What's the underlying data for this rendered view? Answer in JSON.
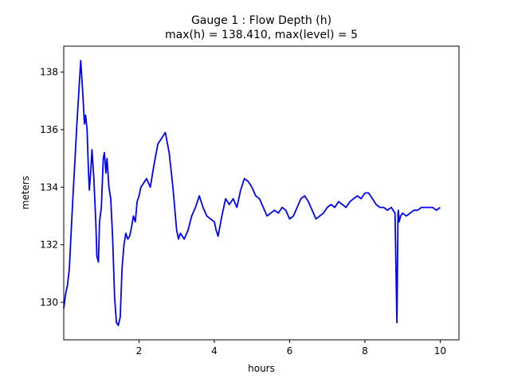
{
  "chart_data": {
    "type": "line",
    "title_line1": "Gauge 1 : Flow Depth (h)",
    "title_line2": "max(h) = 138.410,    max(level) = 5",
    "xlabel": "hours",
    "ylabel": "meters",
    "xlim": [
      0.0,
      10.5
    ],
    "ylim": [
      128.7,
      138.9
    ],
    "x_ticks": [
      2,
      4,
      6,
      8,
      10
    ],
    "y_ticks": [
      130,
      132,
      134,
      136,
      138
    ],
    "grid": false,
    "legend": "none",
    "line_color": "#0000ff",
    "series": [
      {
        "x": [
          0.0,
          0.05,
          0.1,
          0.15,
          0.2,
          0.25,
          0.3,
          0.35,
          0.4,
          0.45,
          0.5,
          0.55,
          0.58,
          0.62,
          0.65,
          0.68,
          0.72,
          0.75,
          0.8,
          0.85,
          0.88,
          0.92,
          0.95,
          1.0,
          1.05,
          1.08,
          1.12,
          1.15,
          1.2,
          1.25,
          1.3,
          1.35,
          1.4,
          1.45,
          1.5,
          1.55,
          1.6,
          1.65,
          1.7,
          1.75,
          1.8,
          1.85,
          1.9,
          1.95,
          2.0,
          2.05,
          2.1,
          2.2,
          2.3,
          2.4,
          2.5,
          2.6,
          2.7,
          2.8,
          2.9,
          3.0,
          3.05,
          3.1,
          3.15,
          3.2,
          3.3,
          3.4,
          3.5,
          3.6,
          3.7,
          3.8,
          3.9,
          4.0,
          4.05,
          4.1,
          4.2,
          4.3,
          4.4,
          4.5,
          4.6,
          4.7,
          4.8,
          4.9,
          5.0,
          5.1,
          5.2,
          5.3,
          5.4,
          5.5,
          5.6,
          5.7,
          5.8,
          5.9,
          6.0,
          6.1,
          6.2,
          6.3,
          6.4,
          6.5,
          6.6,
          6.7,
          6.8,
          6.9,
          7.0,
          7.1,
          7.2,
          7.3,
          7.4,
          7.5,
          7.6,
          7.7,
          7.8,
          7.9,
          8.0,
          8.1,
          8.2,
          8.3,
          8.4,
          8.5,
          8.6,
          8.7,
          8.8,
          8.85,
          8.88,
          8.89,
          8.9,
          8.9,
          8.91,
          8.95,
          9.0,
          9.1,
          9.2,
          9.3,
          9.4,
          9.5,
          9.6,
          9.7,
          9.8,
          9.9,
          10.0
        ],
        "y": [
          129.8,
          130.3,
          130.6,
          131.2,
          132.5,
          133.8,
          135.0,
          136.2,
          137.3,
          138.4,
          137.4,
          136.2,
          136.5,
          136.0,
          134.8,
          133.9,
          134.6,
          135.3,
          134.3,
          132.8,
          131.6,
          131.4,
          132.8,
          133.3,
          135.0,
          135.2,
          134.5,
          135.0,
          134.0,
          133.6,
          132.2,
          130.2,
          129.3,
          129.2,
          129.5,
          131.2,
          132.0,
          132.4,
          132.2,
          132.3,
          132.6,
          133.0,
          132.8,
          133.5,
          133.7,
          134.0,
          134.1,
          134.3,
          134.0,
          134.8,
          135.5,
          135.7,
          135.9,
          135.2,
          134.0,
          132.5,
          132.2,
          132.4,
          132.3,
          132.2,
          132.5,
          133.0,
          133.3,
          133.7,
          133.3,
          133.0,
          132.9,
          132.8,
          132.5,
          132.3,
          133.0,
          133.6,
          133.4,
          133.6,
          133.3,
          133.9,
          134.3,
          134.2,
          134.0,
          133.7,
          133.6,
          133.3,
          133.0,
          133.1,
          133.2,
          133.1,
          133.3,
          133.2,
          132.9,
          133.0,
          133.3,
          133.6,
          133.7,
          133.5,
          133.2,
          132.9,
          133.0,
          133.1,
          133.3,
          133.4,
          133.3,
          133.5,
          133.4,
          133.3,
          133.5,
          133.6,
          133.7,
          133.6,
          133.8,
          133.8,
          133.6,
          133.4,
          133.3,
          133.3,
          133.2,
          133.3,
          133.1,
          129.3,
          133.1,
          133.2,
          133.0,
          132.9,
          132.8,
          133.0,
          133.1,
          133.0,
          133.1,
          133.2,
          133.2,
          133.3,
          133.3,
          133.3,
          133.3,
          133.2,
          133.3
        ]
      }
    ]
  }
}
